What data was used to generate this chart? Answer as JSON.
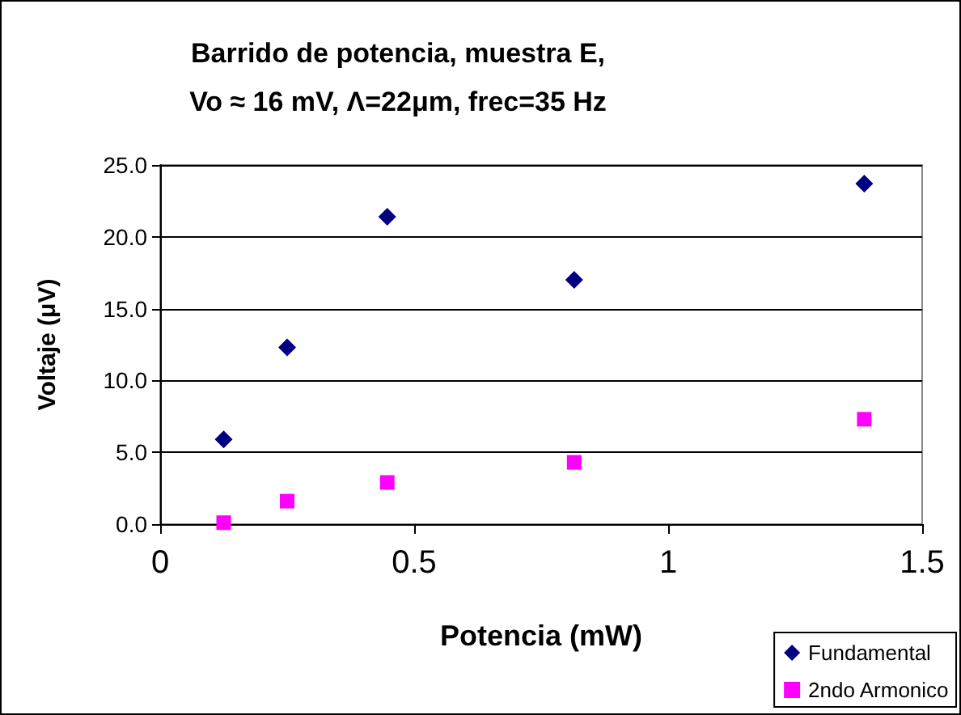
{
  "chart_data": {
    "type": "scatter",
    "title": "Barrido de potencia, muestra E,\nVo ≈ 16 mV, Λ=22μm, frec=35 Hz",
    "xlabel": "Potencia (mW)",
    "ylabel": "Voltaje (μV)",
    "xlim": [
      0,
      1.5
    ],
    "xticks": [
      0,
      0.5,
      1,
      1.5
    ],
    "ylim": [
      0,
      25
    ],
    "yticks": [
      {
        "value": 0,
        "label": "0.0"
      },
      {
        "value": 5,
        "label": "5.0"
      },
      {
        "value": 10,
        "label": "10.0"
      },
      {
        "value": 15,
        "label": "15.0"
      },
      {
        "value": 20,
        "label": "20.0"
      },
      {
        "value": 25,
        "label": "25.0"
      }
    ],
    "grid": "y",
    "legend": "bottom right",
    "series": [
      {
        "name": "Fundamental",
        "color": "#000080",
        "marker": "diamond",
        "x": [
          0.125,
          0.25,
          0.447,
          0.815,
          1.386
        ],
        "values": [
          5.9,
          12.3,
          21.4,
          17.0,
          23.7
        ]
      },
      {
        "name": "2ndo Armonico",
        "color": "#ff00ff",
        "marker": "square",
        "x": [
          0.125,
          0.25,
          0.447,
          0.815,
          1.386
        ],
        "values": [
          0.1,
          1.6,
          2.9,
          4.3,
          7.3
        ]
      }
    ]
  }
}
